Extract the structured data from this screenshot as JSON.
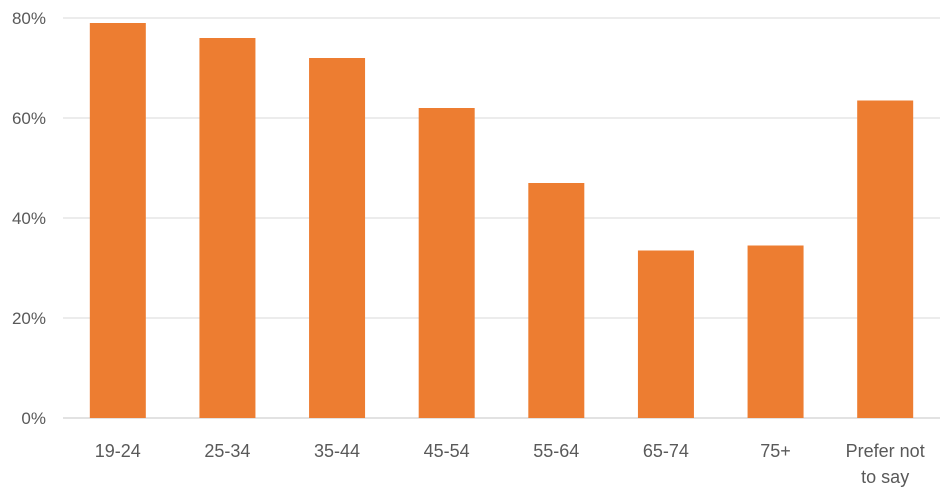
{
  "chart_data": {
    "type": "bar",
    "title": "",
    "xlabel": "",
    "ylabel": "",
    "categories": [
      "19-24",
      "25-34",
      "35-44",
      "45-54",
      "55-64",
      "65-74",
      "75+",
      "Prefer not to say"
    ],
    "category_label_lines": [
      [
        "19-24"
      ],
      [
        "25-34"
      ],
      [
        "35-44"
      ],
      [
        "45-54"
      ],
      [
        "55-64"
      ],
      [
        "65-74"
      ],
      [
        "75+"
      ],
      [
        "Prefer not",
        "to say"
      ]
    ],
    "values": [
      79,
      76,
      72,
      62,
      47,
      33.5,
      34.5,
      63.5
    ],
    "value_format": "percent",
    "ylim": [
      0,
      80
    ],
    "yticks": [
      0,
      20,
      40,
      60,
      80
    ],
    "ytick_labels": [
      "0%",
      "20%",
      "40%",
      "60%",
      "80%"
    ],
    "grid": true,
    "legend": "none",
    "colors": {
      "bar": "#ED7D31",
      "grid": "#D9D9D9",
      "text": "#595959"
    }
  }
}
